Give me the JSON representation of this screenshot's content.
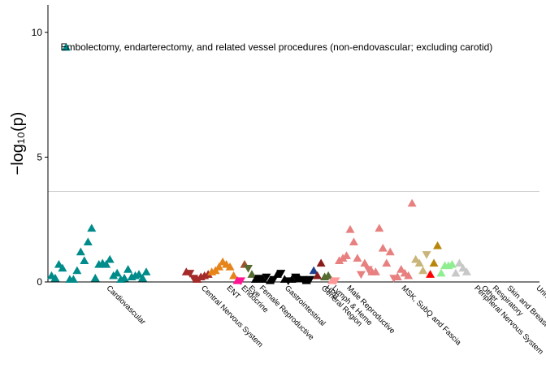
{
  "chart_data": {
    "type": "scatter",
    "title": "",
    "xlabel": "",
    "ylabel": "−log₁₀(p)",
    "ylim": [
      0,
      11.1
    ],
    "yticks": [
      0,
      5,
      10
    ],
    "threshold": 3.63,
    "threshold_color": "#c8c8c8",
    "marker": "triangle",
    "annotation": {
      "text": "Embolectomy, endarterectomy, and related vessel procedures (non-endovascular; excluding carotid)",
      "category": "Cardiovascular",
      "x": 3,
      "y": 9.4
    },
    "categories": [
      {
        "name": "Cardiovascular",
        "color": "#008B8B",
        "x_center": 16
      },
      {
        "name": "Central Nervous System",
        "color": "#A52A2A",
        "x_center": 42
      },
      {
        "name": "ENT",
        "color": "#E6841A",
        "x_center": 49
      },
      {
        "name": "Endocrine",
        "color": "#FF1493",
        "x_center": 53
      },
      {
        "name": "Eye",
        "color": "#A0522D",
        "x_center": 55
      },
      {
        "name": "Female Reproductive",
        "color": "#556B2F",
        "x_center": 58
      },
      {
        "name": "Gastrointestinal",
        "color": "#000000",
        "x_center": 65
      },
      {
        "name": "General Region",
        "color": "#1E3F8C",
        "x_center": 75
      },
      {
        "name": "HPB",
        "color": "#8B1A1A",
        "x_center": 76
      },
      {
        "name": "Lymph & Heme",
        "color": "#556B2F",
        "x_center": 78
      },
      {
        "name": "Male Reproductive",
        "color": "#FF9999",
        "x_center": 82
      },
      {
        "name": "MSK, SubQ and Fascia",
        "color": "#E88080",
        "x_center": 97
      },
      {
        "name": "Peripheral Nervous System",
        "color": "#C9B57A",
        "x_center": 117
      },
      {
        "name": "Other",
        "color": "#FF0000",
        "x_center": 119
      },
      {
        "name": "Respiratory",
        "color": "#B8860B",
        "x_center": 122
      },
      {
        "name": "Skin and Breast",
        "color": "#90EE90",
        "x_center": 126
      },
      {
        "name": "Urinary",
        "color": "#C8C8C8",
        "x_center": 134
      }
    ],
    "series": [
      {
        "name": "Cardiovascular",
        "x": [
          1,
          2,
          3,
          4,
          5,
          6,
          7,
          8,
          9,
          10,
          11,
          12,
          13,
          14,
          15,
          16,
          17,
          18,
          19,
          20,
          21,
          22,
          23,
          24,
          25,
          26,
          27
        ],
        "y": [
          0.25,
          0.15,
          0.7,
          0.55,
          9.4,
          0.1,
          0.1,
          0.45,
          1.2,
          0.85,
          1.6,
          2.15,
          0.15,
          0.7,
          0.75,
          0.7,
          0.9,
          0.25,
          0.35,
          0.1,
          0.15,
          0.5,
          0.2,
          0.25,
          0.3,
          0.15,
          0.4
        ],
        "dir": [
          1,
          1,
          1,
          1,
          1,
          1,
          1,
          1,
          1,
          1,
          1,
          1,
          1,
          1,
          1,
          1,
          1,
          1,
          1,
          1,
          1,
          1,
          1,
          1,
          1,
          1,
          1
        ]
      },
      {
        "name": "Central Nervous System",
        "x": [
          38,
          39,
          40,
          41,
          42,
          43,
          44
        ],
        "y": [
          0.4,
          0.35,
          0.15,
          0.1,
          0.2,
          0.25,
          0.3
        ],
        "dir": [
          1,
          -1,
          -1,
          1,
          1,
          1,
          1
        ]
      },
      {
        "name": "ENT",
        "x": [
          45,
          46,
          47,
          48,
          49,
          50,
          51
        ],
        "y": [
          0.4,
          0.45,
          0.6,
          0.8,
          0.7,
          0.6,
          0.25
        ],
        "dir": [
          1,
          1,
          1,
          1,
          1,
          1,
          1
        ]
      },
      {
        "name": "Endocrine",
        "x": [
          52,
          53
        ],
        "y": [
          0.05,
          0.05
        ],
        "dir": [
          1,
          -1
        ]
      },
      {
        "name": "Eye",
        "x": [
          54
        ],
        "y": [
          0.7
        ],
        "dir": [
          1
        ]
      },
      {
        "name": "Female Reproductive",
        "x": [
          55,
          56
        ],
        "y": [
          0.55,
          0.3
        ],
        "dir": [
          -1,
          1
        ]
      },
      {
        "name": "Gastrointestinal",
        "x": [
          57,
          58,
          59,
          60,
          61,
          62,
          63,
          64,
          65,
          66,
          67,
          68,
          69,
          70,
          71,
          72
        ],
        "y": [
          0.1,
          0.15,
          0.1,
          0.2,
          0.05,
          0.1,
          0.3,
          0.35,
          0.1,
          0.05,
          0.1,
          0.2,
          0.15,
          0.1,
          0.05,
          0.1
        ],
        "dir": [
          1,
          -1,
          1,
          -1,
          1,
          -1,
          1,
          -1,
          1,
          -1,
          1,
          -1,
          1,
          -1,
          1,
          -1
        ]
      },
      {
        "name": "General Region",
        "x": [
          73
        ],
        "y": [
          0.45
        ],
        "dir": [
          1
        ]
      },
      {
        "name": "HPB",
        "x": [
          74,
          75
        ],
        "y": [
          0.25,
          0.75
        ],
        "dir": [
          1,
          1
        ]
      },
      {
        "name": "Lymph & Heme",
        "x": [
          76,
          77
        ],
        "y": [
          0.2,
          0.25
        ],
        "dir": [
          1,
          1
        ]
      },
      {
        "name": "Male Reproductive",
        "x": [
          78,
          79
        ],
        "y": [
          0.05,
          0.05
        ],
        "dir": [
          1,
          -1
        ]
      },
      {
        "name": "MSK, SubQ and Fascia",
        "x": [
          80,
          81,
          82,
          83,
          84,
          85,
          86,
          87,
          88,
          89,
          90,
          91,
          92,
          93,
          94,
          95,
          96,
          97,
          98,
          99,
          100
        ],
        "y": [
          0.85,
          0.95,
          1.05,
          2.1,
          1.6,
          0.95,
          0.3,
          0.75,
          0.5,
          0.4,
          0.4,
          2.15,
          1.35,
          0.75,
          1.2,
          0.15,
          0.2,
          0.5,
          0.35,
          0.25,
          3.15
        ],
        "dir": [
          1,
          1,
          1,
          1,
          1,
          1,
          -1,
          1,
          -1,
          1,
          1,
          1,
          1,
          1,
          1,
          -1,
          1,
          1,
          1,
          1,
          1
        ]
      },
      {
        "name": "Peripheral Nervous System",
        "x": [
          101,
          102,
          103,
          104
        ],
        "y": [
          0.9,
          0.75,
          0.45,
          1.1
        ],
        "dir": [
          1,
          1,
          1,
          -1
        ]
      },
      {
        "name": "Other",
        "x": [
          105
        ],
        "y": [
          0.3
        ],
        "dir": [
          1
        ]
      },
      {
        "name": "Respiratory",
        "x": [
          106,
          107
        ],
        "y": [
          0.75,
          1.45
        ],
        "dir": [
          1,
          1
        ]
      },
      {
        "name": "Skin and Breast",
        "x": [
          108,
          109,
          110,
          111
        ],
        "y": [
          0.35,
          0.65,
          0.65,
          0.7
        ],
        "dir": [
          1,
          1,
          1,
          1
        ]
      },
      {
        "name": "Urinary",
        "x": [
          112,
          113,
          114,
          115
        ],
        "y": [
          0.35,
          0.75,
          0.55,
          0.4
        ],
        "dir": [
          1,
          1,
          1,
          1
        ]
      }
    ],
    "xlim": [
      0,
      135
    ]
  }
}
